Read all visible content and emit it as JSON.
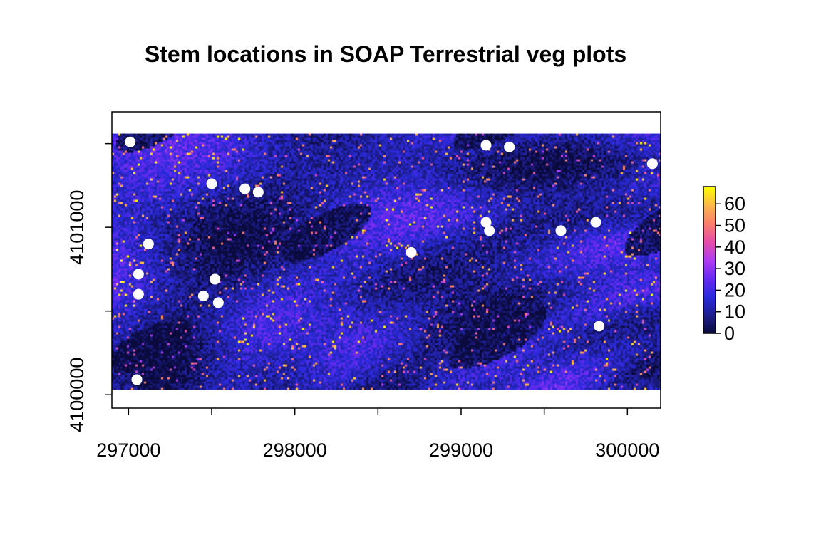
{
  "chart_data": {
    "type": "heatmap",
    "title": "Stem locations in SOAP Terrestrial veg plots",
    "xlabel": "",
    "ylabel": "",
    "xlim": [
      296900,
      300200
    ],
    "ylim": [
      4099920,
      4101690
    ],
    "x_ticks": [
      297000,
      297500,
      298000,
      298500,
      299000,
      299500,
      300000
    ],
    "x_tick_labels": [
      "297000",
      "",
      "298000",
      "",
      "299000",
      "",
      "300000"
    ],
    "y_ticks": [
      4100000,
      4100500,
      4101000,
      4101500
    ],
    "y_tick_labels": [
      "4100000",
      "",
      "4101000",
      ""
    ],
    "raster_extent": {
      "xmin": 296900,
      "xmax": 300200,
      "ymin": 4100030,
      "ymax": 4101560
    },
    "legend": {
      "position": "right",
      "min": 0,
      "max": 68,
      "ticks": [
        0,
        10,
        20,
        30,
        40,
        50,
        60
      ],
      "colors": [
        "#0a0a3c",
        "#1e1e90",
        "#2a2adc",
        "#6a2af0",
        "#b23cf0",
        "#e64fa8",
        "#fa7f6a",
        "#fdb84a",
        "#ffff00"
      ]
    },
    "plot_points": [
      {
        "x": 297010,
        "y": 4101510
      },
      {
        "x": 297500,
        "y": 4101260
      },
      {
        "x": 297700,
        "y": 4101230
      },
      {
        "x": 297780,
        "y": 4101210
      },
      {
        "x": 297120,
        "y": 4100900
      },
      {
        "x": 297060,
        "y": 4100720
      },
      {
        "x": 297520,
        "y": 4100690
      },
      {
        "x": 297060,
        "y": 4100600
      },
      {
        "x": 297450,
        "y": 4100590
      },
      {
        "x": 297540,
        "y": 4100550
      },
      {
        "x": 297050,
        "y": 4100090
      },
      {
        "x": 298700,
        "y": 4100850
      },
      {
        "x": 299150,
        "y": 4101490
      },
      {
        "x": 299290,
        "y": 4101480
      },
      {
        "x": 299150,
        "y": 4101030
      },
      {
        "x": 299170,
        "y": 4100980
      },
      {
        "x": 299600,
        "y": 4100980
      },
      {
        "x": 299810,
        "y": 4101030
      },
      {
        "x": 299830,
        "y": 4100410
      },
      {
        "x": 300150,
        "y": 4101380
      }
    ]
  }
}
